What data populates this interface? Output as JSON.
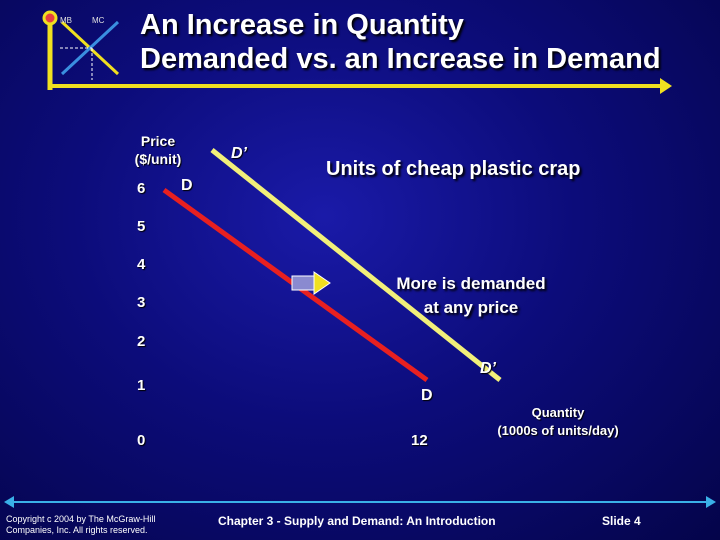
{
  "header": {
    "title_line1": "An Increase in Quantity",
    "title_line2": "Demanded vs. an Increase in Demand",
    "mb_label": "MB",
    "mc_label": "MC"
  },
  "axis": {
    "y_label_line1": "Price",
    "y_label_line2": "($/unit)",
    "x_label_line1": "Quantity",
    "x_label_line2": "(1000s of units/day)",
    "y_ticks": [
      "6",
      "5",
      "4",
      "3",
      "2",
      "1",
      "0"
    ],
    "x_tick": "12"
  },
  "subtitle": "Units of cheap plastic crap",
  "curves": {
    "d_label": "D",
    "d_prime_label": "D’",
    "d_color": "#e82020",
    "d_prime_color": "#f2f07a"
  },
  "annotation": {
    "line1": "More is demanded",
    "line2": "at any price"
  },
  "footer": {
    "copyright_line1": "Copyright c 2004 by The McGraw-Hill",
    "copyright_line2": "Companies, Inc.  All rights reserved.",
    "chapter": "Chapter 3 - Supply and Demand:  An Introduction",
    "slide": "Slide 4"
  },
  "colors": {
    "accent_yellow": "#f0e020",
    "background": "#0c0c7a"
  }
}
